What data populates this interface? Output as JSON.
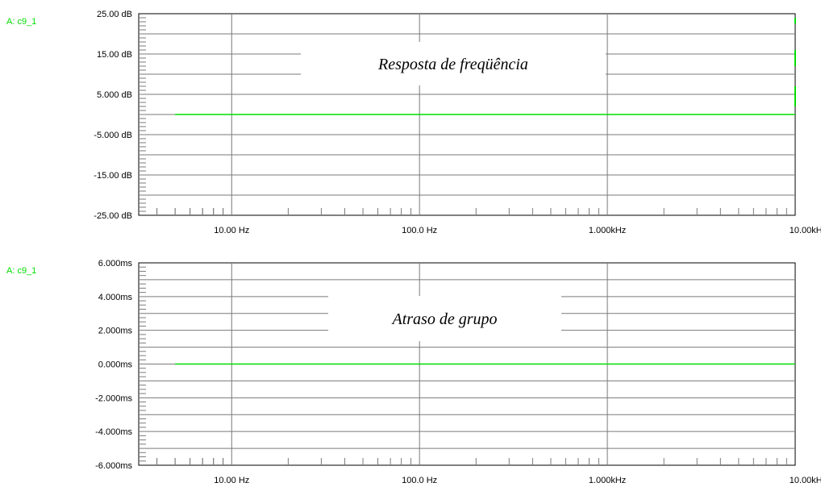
{
  "colors": {
    "trace": "#00dd00",
    "grid": "#7a7a7a",
    "axis": "#000000",
    "background": "#ffffff"
  },
  "chart_data": [
    {
      "type": "line",
      "title": "Resposta de freqüência",
      "trace_label": "A: c9_1",
      "x_scale": "log",
      "x_range_hz": [
        3.2,
        10000
      ],
      "x_tick_values_hz": [
        10,
        100,
        1000,
        10000
      ],
      "x_tick_labels": [
        "10.00 Hz",
        "100.0 Hz",
        "1.000kHz",
        "10.00kHz"
      ],
      "y_range": [
        -25,
        25
      ],
      "y_tick_values": [
        25,
        15,
        5,
        -5,
        -15,
        -25
      ],
      "y_tick_labels": [
        "25.00 dB",
        "15.00 dB",
        "5.000 dB",
        "-5.000 dB",
        "-15.00 dB",
        "-25.00 dB"
      ],
      "grid": true,
      "series": [
        {
          "x": [
            5,
            10,
            100,
            1000,
            10000
          ],
          "y": [
            0,
            0,
            0,
            0,
            0
          ]
        }
      ],
      "edge_marks_at_10khz_db": [
        [
          22.5,
          24
        ],
        [
          12,
          16
        ],
        [
          2,
          7
        ]
      ]
    },
    {
      "type": "line",
      "title": "Atraso de grupo",
      "trace_label": "A: c9_1",
      "x_scale": "log",
      "x_range_hz": [
        3.2,
        10000
      ],
      "x_tick_values_hz": [
        10,
        100,
        1000,
        10000
      ],
      "x_tick_labels": [
        "10.00 Hz",
        "100.0 Hz",
        "1.000kHz",
        "10.00kHz"
      ],
      "y_range": [
        -6,
        6
      ],
      "y_tick_values": [
        6,
        4,
        2,
        0,
        -2,
        -4,
        -6
      ],
      "y_tick_labels": [
        "6.000ms",
        "4.000ms",
        "2.000ms",
        "0.000ms",
        "-2.000ms",
        "-4.000ms",
        "-6.000ms"
      ],
      "grid": true,
      "series": [
        {
          "x": [
            5,
            10,
            100,
            1000,
            10000
          ],
          "y": [
            0,
            0,
            0,
            0,
            0
          ]
        }
      ]
    }
  ]
}
